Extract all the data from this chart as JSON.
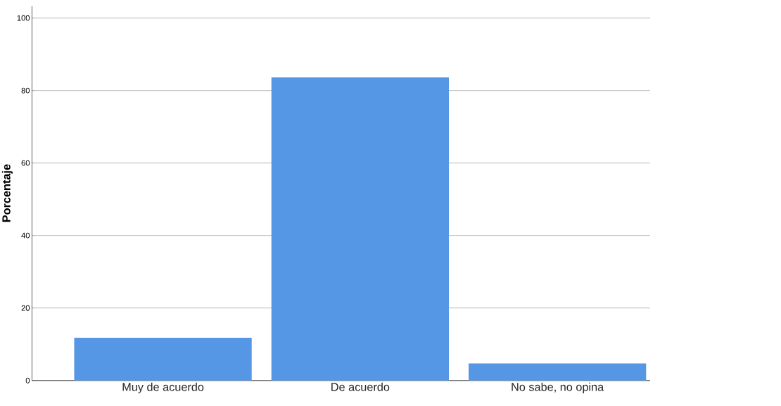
{
  "chart_data": {
    "type": "bar",
    "ylabel": "Porcentaje",
    "categories": [
      "Muy de acuerdo",
      "De acuerdo",
      "No sabe, no opina"
    ],
    "values": [
      11.8,
      83.6,
      4.7
    ],
    "color": "#5596e5",
    "ylim": [
      0,
      103.3
    ],
    "yticks": [
      0,
      20,
      40,
      60,
      80,
      100
    ],
    "grid": "y"
  }
}
